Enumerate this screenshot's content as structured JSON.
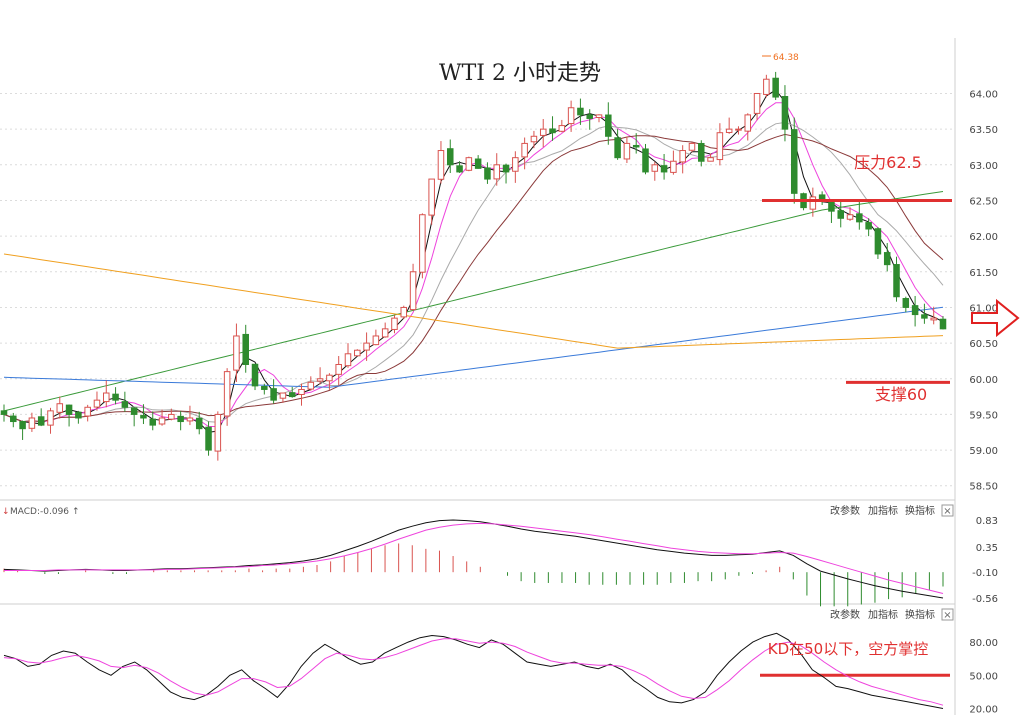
{
  "title": "WTI 2 小时走势",
  "main": {
    "high_label": "64.38",
    "y_ticks": [
      "64.00",
      "63.50",
      "63.00",
      "62.50",
      "62.00",
      "61.50",
      "61.00",
      "60.50",
      "60.00",
      "59.50",
      "59.00",
      "58.50"
    ],
    "resistance_label": "压力62.5",
    "support_label": "支撑60"
  },
  "macd": {
    "label": "MACD:-0.096",
    "y_ticks": [
      "0.83",
      "0.35",
      "-0.10",
      "-0.56"
    ]
  },
  "kd": {
    "note": "KD在50以下，空方掌控",
    "y_ticks": [
      "80.00",
      "50.00",
      "20.00"
    ]
  },
  "toolbar": {
    "change_params": "改参数",
    "add_indicator": "加指标",
    "switch_indicator": "换指标",
    "close": "×"
  },
  "colors": {
    "up": "#d9534f",
    "down": "#2e8b2e",
    "level": "#e03030",
    "ma5": "#111111",
    "ma10": "#ee44dd",
    "ma20": "#aaaaaa",
    "ma30": "#8b3a3a",
    "ma60": "#3a9a3a",
    "ma120": "#3a7ad9",
    "ma250": "#f0a020"
  },
  "chart_data": [
    {
      "type": "candlestick",
      "title": "WTI 2 小时走势",
      "ylim": [
        58.3,
        64.75
      ],
      "y_ticks": [
        58.5,
        59.0,
        59.5,
        60.0,
        60.5,
        61.0,
        61.5,
        62.0,
        62.5,
        63.0,
        63.5,
        64.0
      ],
      "high_marker": 64.38,
      "levels": [
        {
          "name": "压力62.5",
          "value": 62.5
        },
        {
          "name": "支撑60",
          "value": 59.95
        }
      ],
      "close": [
        59.5,
        59.4,
        59.3,
        59.45,
        59.35,
        59.55,
        59.65,
        59.5,
        59.45,
        59.6,
        59.7,
        59.8,
        59.7,
        59.6,
        59.5,
        59.45,
        59.35,
        59.45,
        59.5,
        59.4,
        59.45,
        59.3,
        59.0,
        59.5,
        60.1,
        60.6,
        60.2,
        59.9,
        59.85,
        59.7,
        59.8,
        59.75,
        59.85,
        59.95,
        60.0,
        60.05,
        60.2,
        60.35,
        60.4,
        60.5,
        60.6,
        60.7,
        60.85,
        61.0,
        61.5,
        62.3,
        62.8,
        63.2,
        63.0,
        62.9,
        63.1,
        62.95,
        62.8,
        63.0,
        62.9,
        63.1,
        63.3,
        63.4,
        63.5,
        63.45,
        63.55,
        63.8,
        63.7,
        63.65,
        63.7,
        63.4,
        63.1,
        63.3,
        63.25,
        62.9,
        63.0,
        62.9,
        63.05,
        63.2,
        63.3,
        63.05,
        63.1,
        63.45,
        63.5,
        63.5,
        63.7,
        64.0,
        64.2,
        63.95,
        63.5,
        62.6,
        62.4,
        62.55,
        62.5,
        62.35,
        62.25,
        62.3,
        62.2,
        62.1,
        61.75,
        61.6,
        61.15,
        61.0,
        60.9,
        60.85,
        60.85,
        60.7
      ],
      "ma_periods": [
        5,
        10,
        20,
        30,
        60,
        120,
        250
      ]
    },
    {
      "type": "line+bar",
      "title": "MACD",
      "ylim": [
        -0.56,
        0.83
      ],
      "y_ticks": [
        -0.56,
        -0.1,
        0.35,
        0.83
      ],
      "latest": -0.096,
      "dif": [
        -0.05,
        -0.06,
        -0.07,
        -0.08,
        -0.07,
        -0.06,
        -0.05,
        -0.06,
        -0.07,
        -0.07,
        -0.06,
        -0.05,
        -0.04,
        -0.04,
        -0.03,
        -0.02,
        -0.01,
        0.0,
        0.02,
        0.03,
        0.05,
        0.07,
        0.1,
        0.14,
        0.2,
        0.28,
        0.36,
        0.45,
        0.55,
        0.65,
        0.72,
        0.78,
        0.82,
        0.83,
        0.82,
        0.8,
        0.76,
        0.72,
        0.67,
        0.63,
        0.6,
        0.57,
        0.54,
        0.5,
        0.46,
        0.42,
        0.38,
        0.34,
        0.3,
        0.27,
        0.24,
        0.22,
        0.2,
        0.2,
        0.21,
        0.22,
        0.25,
        0.28,
        0.2,
        0.05,
        -0.08,
        -0.15,
        -0.22,
        -0.28,
        -0.34,
        -0.39,
        -0.44,
        -0.48,
        -0.52,
        -0.56
      ],
      "dea": [
        -0.07,
        -0.07,
        -0.07,
        -0.07,
        -0.06,
        -0.06,
        -0.06,
        -0.06,
        -0.06,
        -0.06,
        -0.06,
        -0.06,
        -0.05,
        -0.05,
        -0.04,
        -0.03,
        -0.02,
        -0.01,
        0.0,
        0.02,
        0.03,
        0.05,
        0.07,
        0.1,
        0.14,
        0.19,
        0.25,
        0.32,
        0.4,
        0.49,
        0.57,
        0.65,
        0.7,
        0.74,
        0.76,
        0.77,
        0.76,
        0.74,
        0.72,
        0.69,
        0.66,
        0.63,
        0.6,
        0.57,
        0.53,
        0.49,
        0.45,
        0.41,
        0.37,
        0.33,
        0.3,
        0.27,
        0.25,
        0.24,
        0.23,
        0.23,
        0.24,
        0.25,
        0.24,
        0.18,
        0.11,
        0.04,
        -0.03,
        -0.1,
        -0.17,
        -0.24,
        -0.3,
        -0.36,
        -0.42,
        -0.48
      ]
    },
    {
      "type": "line",
      "title": "KD",
      "ylim": [
        15,
        100
      ],
      "y_ticks": [
        20,
        50,
        80
      ],
      "levels": [
        {
          "name": "50",
          "value": 50
        }
      ],
      "k": [
        68,
        65,
        58,
        60,
        68,
        72,
        70,
        62,
        55,
        50,
        58,
        62,
        55,
        45,
        35,
        30,
        28,
        32,
        40,
        50,
        55,
        45,
        38,
        30,
        42,
        58,
        70,
        78,
        72,
        65,
        60,
        62,
        70,
        75,
        80,
        84,
        86,
        85,
        82,
        78,
        75,
        82,
        78,
        70,
        62,
        60,
        58,
        60,
        62,
        58,
        56,
        60,
        55,
        45,
        38,
        30,
        26,
        25,
        28,
        35,
        50,
        62,
        72,
        80,
        85,
        88,
        82,
        70,
        55,
        48,
        40,
        38,
        35,
        32,
        30,
        28,
        26,
        24,
        22,
        20
      ],
      "d": [
        66,
        65,
        62,
        61,
        63,
        66,
        68,
        66,
        63,
        58,
        57,
        59,
        57,
        52,
        45,
        39,
        34,
        32,
        35,
        41,
        47,
        47,
        44,
        39,
        40,
        47,
        56,
        65,
        70,
        68,
        65,
        64,
        66,
        69,
        73,
        77,
        81,
        83,
        83,
        81,
        79,
        80,
        79,
        76,
        71,
        67,
        63,
        61,
        61,
        60,
        59,
        59,
        58,
        54,
        49,
        42,
        36,
        31,
        29,
        30,
        37,
        45,
        55,
        64,
        72,
        78,
        80,
        77,
        70,
        62,
        55,
        49,
        44,
        40,
        37,
        34,
        31,
        28,
        26,
        23
      ]
    }
  ]
}
